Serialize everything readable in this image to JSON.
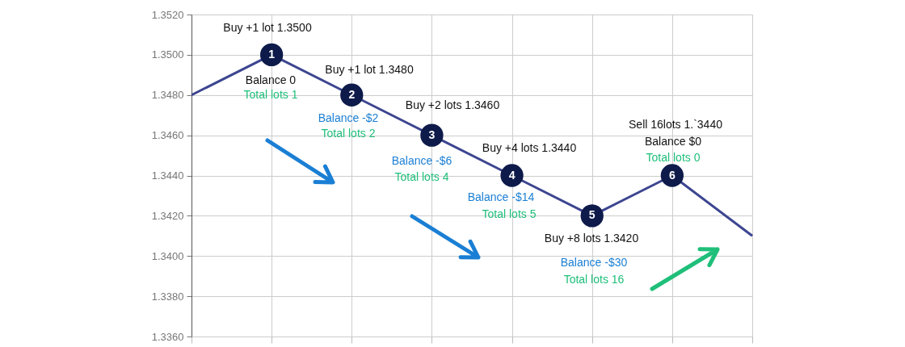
{
  "chart_data": {
    "type": "line",
    "categories": [
      null,
      null,
      null,
      null,
      null,
      null,
      null,
      null
    ],
    "series": [
      {
        "color": "#3c4590",
        "values": [
          1.348,
          1.35,
          1.348,
          1.346,
          1.344,
          1.342,
          1.344,
          1.341
        ]
      }
    ],
    "ylim": [
      1.336,
      1.352
    ],
    "yticks": [
      {
        "value": 1.336,
        "label": "1.3360"
      },
      {
        "value": 1.338,
        "label": "1.3380"
      },
      {
        "value": 1.34,
        "label": "1.3400"
      },
      {
        "value": 1.342,
        "label": "1.3420"
      },
      {
        "value": 1.344,
        "label": "1.3440"
      },
      {
        "value": 1.346,
        "label": "1.3460"
      },
      {
        "value": 1.348,
        "label": "1.3480"
      },
      {
        "value": 1.35,
        "label": "1.3500"
      },
      {
        "value": 1.352,
        "label": "1.3520"
      }
    ],
    "grid": true,
    "tick_labels": "y",
    "line_style": "solid",
    "annotations": [
      {
        "text": "1",
        "y": 1.35
      },
      {
        "text": "2",
        "y": 1.348
      },
      {
        "text": "3",
        "y": 1.346
      },
      {
        "text": "4",
        "y": 1.344
      },
      {
        "text": "5",
        "y": 1.342
      },
      {
        "text": "6",
        "y": 1.344
      },
      "Buy +1 lot 1.3500",
      "Balance 0",
      "Total lots 1",
      "Buy +1 lot 1.3480",
      "Balance -$2",
      "Total lots 2",
      "Buy +2 lots 1.3460",
      "Balance -$6",
      "Total lots 4",
      "Buy +4 lots 1.3440",
      "Balance -$14",
      "Total lots 5",
      "Buy +8 lots 1.3420",
      "Balance -$30",
      "Total lots 16",
      "Sell 16lots 1.`3440",
      "Balance $0",
      "Total lots 0"
    ]
  }
}
